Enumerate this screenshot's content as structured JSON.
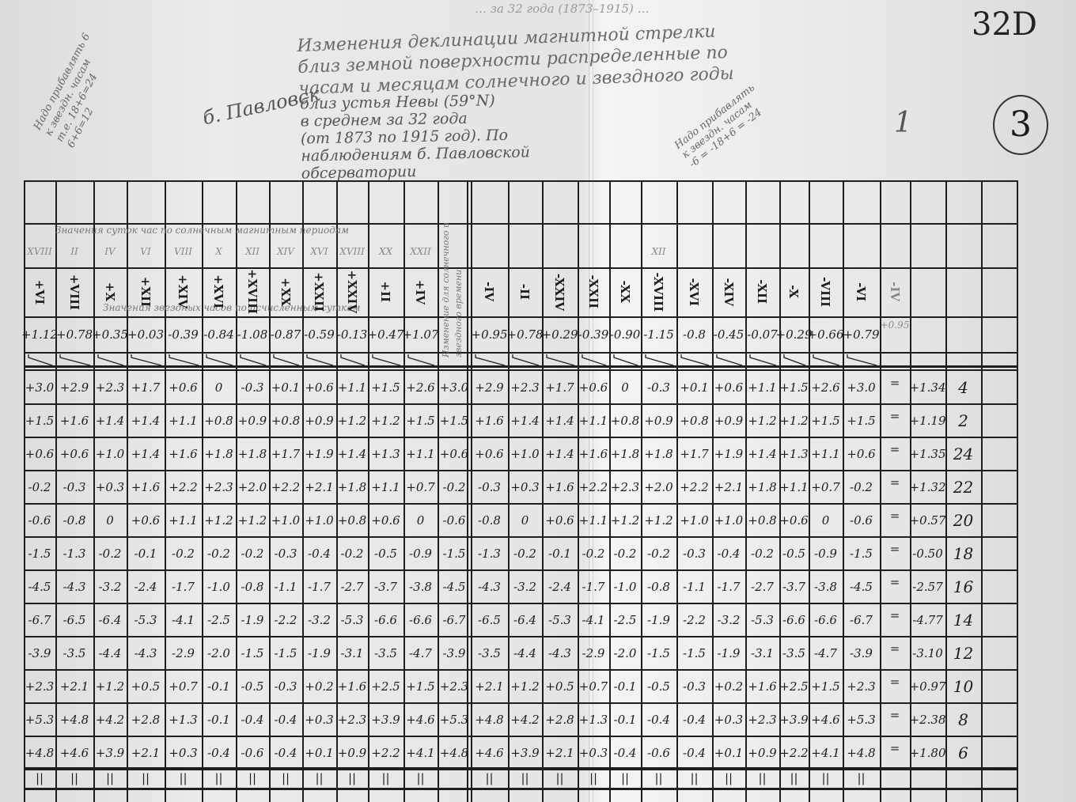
{
  "document": {
    "top_faint_line": "… за 32 года (1873–1915) …",
    "corner_code": "32D",
    "circled_number": "3",
    "mark_one": "1",
    "title": "Изменения деклинации магнитной стрелки\nблиз земной поверхности распределенные по\nчасам и месяцам солнечного и звездного годы",
    "place": "б. Павловск",
    "subtitle": "близ устья Невы (59°N)\nв среднем за 32 года\n(от 1873 по 1915 год). По\nнаблюдениям б. Павловской\nобсерватории",
    "note_left": "Надо прибавлять 6\nк звездн. часам\nт.е. 18+6=24\n6+6=12",
    "note_right": "Надо прибавлять\nк звездн. часам\n-6 = -18+6 = -24",
    "middle_column_note": "Изменение для солнечного и звездного времени",
    "header_note_top": "Значения суток час по солнечным магнитным периодам",
    "header_note_bottom": "Значения звездных часов по исчисленным суткам"
  },
  "table": {
    "small_numerals": [
      "XVIII",
      "II",
      "IV",
      "VI",
      "VIII",
      "X",
      "XII",
      "XIV",
      "XVI",
      "XVIII",
      "XX",
      "XXII"
    ],
    "right_small_numeral": "XII",
    "left_headers": [
      "+VI",
      "+VIII",
      "+X",
      "+XII",
      "+XIV",
      "+XVI",
      "+XVIII",
      "+XX",
      "+XXII",
      "+XXIV",
      "+II",
      "+IV"
    ],
    "left_header_values": [
      "+1.12",
      "+0.78",
      "+0.35",
      "+0.03",
      "-0.39",
      "-0.84",
      "-1.08",
      "-0.87",
      "-0.59",
      "-0.13",
      "+0.47",
      "+1.07"
    ],
    "right_headers": [
      "-IV",
      "-II",
      "-XXIV",
      "-XXII",
      "-XX",
      "-XVIII",
      "-XVI",
      "-XIV",
      "-XII",
      "-X",
      "-VIII",
      "-VI"
    ],
    "right_header_values": [
      "+0.95",
      "+0.78",
      "+0.29",
      "-0.39",
      "-0.90",
      "-1.15",
      "-0.8",
      "-0.45",
      "-0.07",
      "+0.29",
      "+0.66",
      "+0.79"
    ],
    "extra_header": "-IV",
    "extra_header_value": "+0.95",
    "equals": "=",
    "ditto": "||",
    "rows": [
      {
        "left": [
          "+3.0",
          "+2.9",
          "+2.3",
          "+1.7",
          "+0.6",
          "0",
          "-0.3",
          "+0.1",
          "+0.6",
          "+1.1",
          "+1.5",
          "+2.6"
        ],
        "mid": "+3.0",
        "right": [
          "+2.9",
          "+2.3",
          "+1.7",
          "+0.6",
          "0",
          "-0.3",
          "+0.1",
          "+0.6",
          "+1.1",
          "+1.5",
          "+2.6",
          "+3.0"
        ],
        "mean": "+1.34",
        "hour": "4"
      },
      {
        "left": [
          "+1.5",
          "+1.6",
          "+1.4",
          "+1.4",
          "+1.1",
          "+0.8",
          "+0.9",
          "+0.8",
          "+0.9",
          "+1.2",
          "+1.2",
          "+1.5"
        ],
        "mid": "+1.5",
        "right": [
          "+1.6",
          "+1.4",
          "+1.4",
          "+1.1",
          "+0.8",
          "+0.9",
          "+0.8",
          "+0.9",
          "+1.2",
          "+1.2",
          "+1.5",
          "+1.5"
        ],
        "mean": "+1.19",
        "hour": "2"
      },
      {
        "left": [
          "+0.6",
          "+0.6",
          "+1.0",
          "+1.4",
          "+1.6",
          "+1.8",
          "+1.8",
          "+1.7",
          "+1.9",
          "+1.4",
          "+1.3",
          "+1.1"
        ],
        "mid": "+0.6",
        "right": [
          "+0.6",
          "+1.0",
          "+1.4",
          "+1.6",
          "+1.8",
          "+1.8",
          "+1.7",
          "+1.9",
          "+1.4",
          "+1.3",
          "+1.1",
          "+0.6"
        ],
        "mean": "+1.35",
        "hour": "24"
      },
      {
        "left": [
          "-0.2",
          "-0.3",
          "+0.3",
          "+1.6",
          "+2.2",
          "+2.3",
          "+2.0",
          "+2.2",
          "+2.1",
          "+1.8",
          "+1.1",
          "+0.7"
        ],
        "mid": "-0.2",
        "right": [
          "-0.3",
          "+0.3",
          "+1.6",
          "+2.2",
          "+2.3",
          "+2.0",
          "+2.2",
          "+2.1",
          "+1.8",
          "+1.1",
          "+0.7",
          "-0.2"
        ],
        "mean": "+1.32",
        "hour": "22"
      },
      {
        "left": [
          "-0.6",
          "-0.8",
          "0",
          "+0.6",
          "+1.1",
          "+1.2",
          "+1.2",
          "+1.0",
          "+1.0",
          "+0.8",
          "+0.6",
          "0"
        ],
        "mid": "-0.6",
        "right": [
          "-0.8",
          "0",
          "+0.6",
          "+1.1",
          "+1.2",
          "+1.2",
          "+1.0",
          "+1.0",
          "+0.8",
          "+0.6",
          "0",
          "-0.6"
        ],
        "mean": "+0.57",
        "hour": "20"
      },
      {
        "left": [
          "-1.5",
          "-1.3",
          "-0.2",
          "-0.1",
          "-0.2",
          "-0.2",
          "-0.2",
          "-0.3",
          "-0.4",
          "-0.2",
          "-0.5",
          "-0.9"
        ],
        "mid": "-1.5",
        "right": [
          "-1.3",
          "-0.2",
          "-0.1",
          "-0.2",
          "-0.2",
          "-0.2",
          "-0.3",
          "-0.4",
          "-0.2",
          "-0.5",
          "-0.9",
          "-1.5"
        ],
        "mean": "-0.50",
        "hour": "18"
      },
      {
        "left": [
          "-4.5",
          "-4.3",
          "-3.2",
          "-2.4",
          "-1.7",
          "-1.0",
          "-0.8",
          "-1.1",
          "-1.7",
          "-2.7",
          "-3.7",
          "-3.8"
        ],
        "mid": "-4.5",
        "right": [
          "-4.3",
          "-3.2",
          "-2.4",
          "-1.7",
          "-1.0",
          "-0.8",
          "-1.1",
          "-1.7",
          "-2.7",
          "-3.7",
          "-3.8",
          "-4.5"
        ],
        "mean": "-2.57",
        "hour": "16"
      },
      {
        "left": [
          "-6.7",
          "-6.5",
          "-6.4",
          "-5.3",
          "-4.1",
          "-2.5",
          "-1.9",
          "-2.2",
          "-3.2",
          "-5.3",
          "-6.6",
          "-6.6"
        ],
        "mid": "-6.7",
        "right": [
          "-6.5",
          "-6.4",
          "-5.3",
          "-4.1",
          "-2.5",
          "-1.9",
          "-2.2",
          "-3.2",
          "-5.3",
          "-6.6",
          "-6.6",
          "-6.7"
        ],
        "mean": "-4.77",
        "hour": "14"
      },
      {
        "left": [
          "-3.9",
          "-3.5",
          "-4.4",
          "-4.3",
          "-2.9",
          "-2.0",
          "-1.5",
          "-1.5",
          "-1.9",
          "-3.1",
          "-3.5",
          "-4.7"
        ],
        "mid": "-3.9",
        "right": [
          "-3.5",
          "-4.4",
          "-4.3",
          "-2.9",
          "-2.0",
          "-1.5",
          "-1.5",
          "-1.9",
          "-3.1",
          "-3.5",
          "-4.7",
          "-3.9"
        ],
        "mean": "-3.10",
        "hour": "12"
      },
      {
        "left": [
          "+2.3",
          "+2.1",
          "+1.2",
          "+0.5",
          "+0.7",
          "-0.1",
          "-0.5",
          "-0.3",
          "+0.2",
          "+1.6",
          "+2.5",
          "+1.5"
        ],
        "mid": "+2.3",
        "right": [
          "+2.1",
          "+1.2",
          "+0.5",
          "+0.7",
          "-0.1",
          "-0.5",
          "-0.3",
          "+0.2",
          "+1.6",
          "+2.5",
          "+1.5",
          "+2.3"
        ],
        "mean": "+0.97",
        "hour": "10"
      },
      {
        "left": [
          "+5.3",
          "+4.8",
          "+4.2",
          "+2.8",
          "+1.3",
          "-0.1",
          "-0.4",
          "-0.4",
          "+0.3",
          "+2.3",
          "+3.9",
          "+4.6"
        ],
        "mid": "+5.3",
        "right": [
          "+4.8",
          "+4.2",
          "+2.8",
          "+1.3",
          "-0.1",
          "-0.4",
          "-0.4",
          "+0.3",
          "+2.3",
          "+3.9",
          "+4.6",
          "+5.3"
        ],
        "mean": "+2.38",
        "hour": "8"
      },
      {
        "left": [
          "+4.8",
          "+4.6",
          "+3.9",
          "+2.1",
          "+0.3",
          "-0.4",
          "-0.6",
          "-0.4",
          "+0.1",
          "+0.9",
          "+2.2",
          "+4.1"
        ],
        "mid": "+4.8",
        "right": [
          "+4.6",
          "+3.9",
          "+2.1",
          "+0.3",
          "-0.4",
          "-0.6",
          "-0.4",
          "+0.1",
          "+0.9",
          "+2.2",
          "+4.1",
          "+4.8"
        ],
        "mean": "+1.80",
        "hour": "6"
      }
    ]
  }
}
